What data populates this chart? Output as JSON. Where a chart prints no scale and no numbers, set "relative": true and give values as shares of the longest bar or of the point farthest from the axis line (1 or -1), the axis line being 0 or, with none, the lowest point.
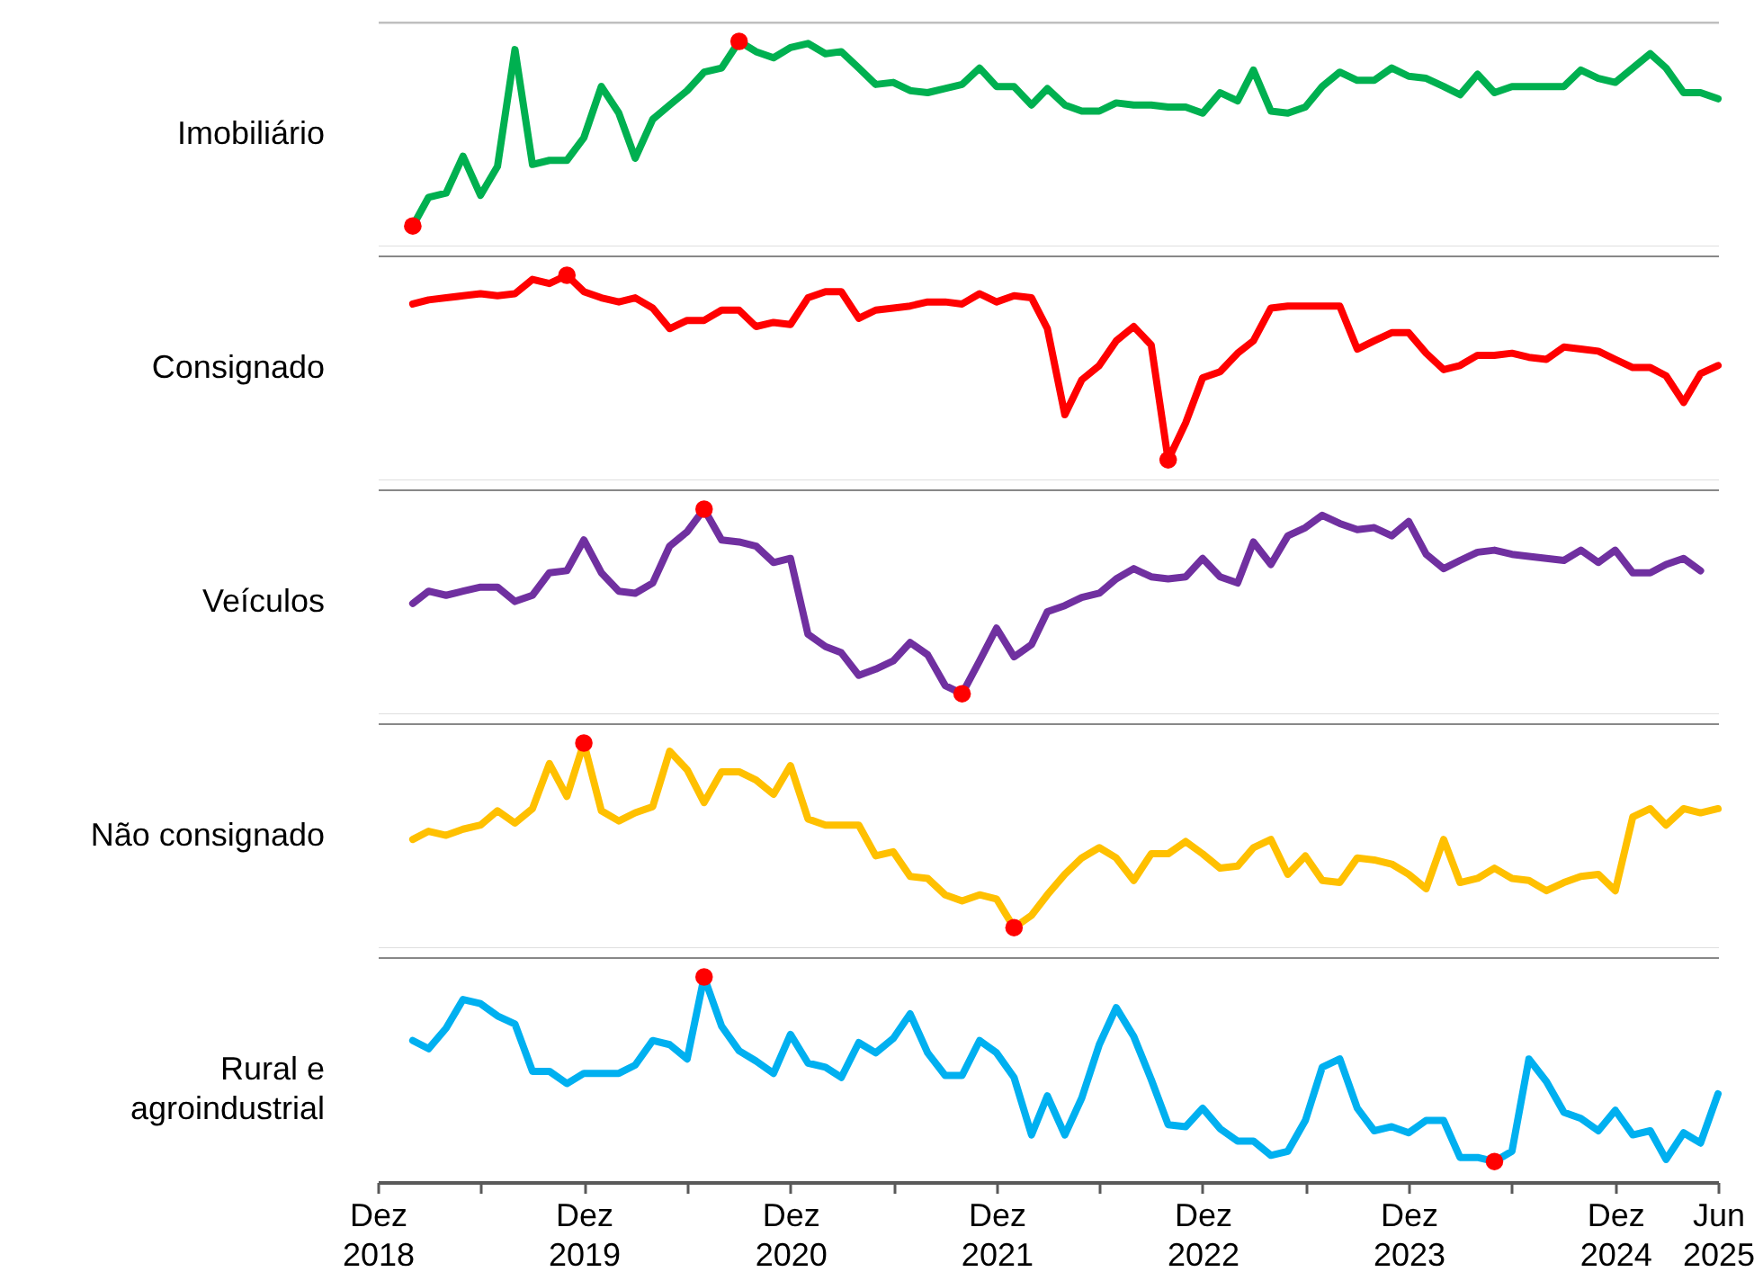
{
  "chart_data": [
    {
      "type": "line",
      "relative": true,
      "ylabel": "Imobiliário",
      "tick_labels": false,
      "xlim": [
        "2018-12",
        "2025-06"
      ],
      "x": [
        "2019-02",
        "2019-03",
        "2019-04",
        "2019-05",
        "2019-06",
        "2019-07",
        "2019-08",
        "2019-09",
        "2019-10",
        "2019-11",
        "2019-12",
        "2020-01",
        "2020-02",
        "2020-03",
        "2020-04",
        "2020-05",
        "2020-06",
        "2020-07",
        "2020-08",
        "2020-09",
        "2020-10",
        "2020-11",
        "2020-12",
        "2021-01",
        "2021-02",
        "2021-03",
        "2021-04",
        "2021-05",
        "2021-06",
        "2021-07",
        "2021-08",
        "2021-09",
        "2021-10",
        "2021-11",
        "2021-12",
        "2022-01",
        "2022-02",
        "2022-03",
        "2022-04",
        "2022-05",
        "2022-06",
        "2022-07",
        "2022-08",
        "2022-09",
        "2022-10",
        "2022-11",
        "2022-12",
        "2023-01",
        "2023-02",
        "2023-03",
        "2023-04",
        "2023-05",
        "2023-06",
        "2023-07",
        "2023-08",
        "2023-09",
        "2023-10",
        "2023-11",
        "2023-12",
        "2024-01",
        "2024-02",
        "2024-03",
        "2024-04",
        "2024-05",
        "2024-06",
        "2024-07",
        "2024-08",
        "2024-09",
        "2024-10",
        "2024-11",
        "2024-12",
        "2025-01",
        "2025-02",
        "2025-03",
        "2025-04",
        "2025-05",
        "2025-06"
      ],
      "series": [
        {
          "color": "#00b050",
          "values": [
            0.1,
            0.24,
            0.26,
            0.44,
            0.25,
            0.39,
            0.96,
            0.4,
            0.42,
            0.42,
            0.53,
            0.78,
            0.65,
            0.43,
            0.62,
            0.69,
            0.76,
            0.85,
            0.87,
            1,
            0.95,
            0.92,
            0.97,
            0.99,
            0.94,
            0.95,
            0.87,
            0.79,
            0.8,
            0.76,
            0.75,
            0.77,
            0.79,
            0.87,
            0.78,
            0.78,
            0.69,
            0.77,
            0.69,
            0.66,
            0.66,
            0.7,
            0.69,
            0.69,
            0.68,
            0.68,
            0.65,
            0.75,
            0.71,
            0.86,
            0.66,
            0.65,
            0.68,
            0.78,
            0.85,
            0.81,
            0.81,
            0.87,
            0.83,
            0.82,
            0.78,
            0.74,
            0.84,
            0.75,
            0.78,
            0.78,
            0.78,
            0.78,
            0.86,
            0.82,
            0.8,
            0.87,
            0.94,
            0.87,
            0.75,
            0.75,
            0.72
          ]
        },
        {
          "type": "scatter",
          "color": "#ff0000",
          "x": [
            "2019-02",
            "2020-09"
          ],
          "values": [
            0.1,
            1
          ]
        }
      ]
    },
    {
      "type": "line",
      "relative": true,
      "ylabel": "Consignado",
      "tick_labels": false,
      "xlim": [
        "2018-12",
        "2025-06"
      ],
      "x": [
        "2019-02",
        "2019-03",
        "2019-04",
        "2019-05",
        "2019-06",
        "2019-07",
        "2019-08",
        "2019-09",
        "2019-10",
        "2019-11",
        "2019-12",
        "2020-01",
        "2020-02",
        "2020-03",
        "2020-04",
        "2020-05",
        "2020-06",
        "2020-07",
        "2020-08",
        "2020-09",
        "2020-10",
        "2020-11",
        "2020-12",
        "2021-01",
        "2021-02",
        "2021-03",
        "2021-04",
        "2021-05",
        "2021-06",
        "2021-07",
        "2021-08",
        "2021-09",
        "2021-10",
        "2021-11",
        "2021-12",
        "2022-01",
        "2022-02",
        "2022-03",
        "2022-04",
        "2022-05",
        "2022-06",
        "2022-07",
        "2022-08",
        "2022-09",
        "2022-10",
        "2022-11",
        "2022-12",
        "2023-01",
        "2023-02",
        "2023-03",
        "2023-04",
        "2023-05",
        "2023-06",
        "2023-07",
        "2023-08",
        "2023-09",
        "2023-10",
        "2023-11",
        "2023-12",
        "2024-01",
        "2024-02",
        "2024-03",
        "2024-04",
        "2024-05",
        "2024-06",
        "2024-07",
        "2024-08",
        "2024-09",
        "2024-10",
        "2024-11",
        "2024-12",
        "2025-01",
        "2025-02",
        "2025-03",
        "2025-04",
        "2025-05",
        "2025-06"
      ],
      "series": [
        {
          "color": "#ff0000",
          "values": [
            0.86,
            0.88,
            0.89,
            0.9,
            0.91,
            0.9,
            0.91,
            0.98,
            0.96,
            1,
            0.92,
            0.89,
            0.87,
            0.89,
            0.84,
            0.74,
            0.78,
            0.78,
            0.83,
            0.83,
            0.75,
            0.77,
            0.76,
            0.89,
            0.92,
            0.92,
            0.79,
            0.83,
            0.84,
            0.85,
            0.87,
            0.87,
            0.86,
            0.91,
            0.87,
            0.9,
            0.89,
            0.74,
            0.32,
            0.49,
            0.56,
            0.68,
            0.75,
            0.66,
            0.1,
            0.28,
            0.5,
            0.53,
            0.62,
            0.68,
            0.84,
            0.85,
            0.85,
            0.85,
            0.85,
            0.64,
            0.68,
            0.72,
            0.72,
            0.62,
            0.54,
            0.56,
            0.61,
            0.61,
            0.62,
            0.6,
            0.59,
            0.65,
            0.64,
            0.63,
            0.59,
            0.55,
            0.55,
            0.51,
            0.38,
            0.52,
            0.56
          ]
        },
        {
          "type": "scatter",
          "color": "#ff0000",
          "x": [
            "2019-11",
            "2022-10"
          ],
          "values": [
            1,
            0.1
          ]
        }
      ]
    },
    {
      "type": "line",
      "relative": true,
      "ylabel": "Veículos",
      "tick_labels": false,
      "xlim": [
        "2018-12",
        "2025-06"
      ],
      "x": [
        "2019-02",
        "2019-03",
        "2019-04",
        "2019-05",
        "2019-06",
        "2019-07",
        "2019-08",
        "2019-09",
        "2019-10",
        "2019-11",
        "2019-12",
        "2020-01",
        "2020-02",
        "2020-03",
        "2020-04",
        "2020-05",
        "2020-06",
        "2020-07",
        "2020-08",
        "2020-09",
        "2020-10",
        "2020-11",
        "2020-12",
        "2021-01",
        "2021-02",
        "2021-03",
        "2021-04",
        "2021-05",
        "2021-06",
        "2021-07",
        "2021-08",
        "2021-09",
        "2021-10",
        "2021-11",
        "2021-12",
        "2022-01",
        "2022-02",
        "2022-03",
        "2022-04",
        "2022-05",
        "2022-06",
        "2022-07",
        "2022-08",
        "2022-09",
        "2022-10",
        "2022-11",
        "2022-12",
        "2023-01",
        "2023-02",
        "2023-03",
        "2023-04",
        "2023-05",
        "2023-06",
        "2023-07",
        "2023-08",
        "2023-09",
        "2023-10",
        "2023-11",
        "2023-12",
        "2024-01",
        "2024-02",
        "2024-03",
        "2024-04",
        "2024-05",
        "2024-06",
        "2024-07",
        "2024-08",
        "2024-09",
        "2024-10",
        "2024-11",
        "2024-12",
        "2025-01",
        "2025-02",
        "2025-03",
        "2025-04",
        "2025-05"
      ],
      "series": [
        {
          "color": "#7030a0",
          "values": [
            0.54,
            0.6,
            0.58,
            0.6,
            0.62,
            0.62,
            0.55,
            0.58,
            0.69,
            0.7,
            0.85,
            0.69,
            0.6,
            0.59,
            0.64,
            0.82,
            0.89,
            1,
            0.85,
            0.84,
            0.82,
            0.74,
            0.76,
            0.39,
            0.33,
            0.3,
            0.19,
            0.22,
            0.26,
            0.35,
            0.29,
            0.14,
            0.1,
            0.26,
            0.42,
            0.28,
            0.34,
            0.5,
            0.53,
            0.57,
            0.59,
            0.66,
            0.71,
            0.67,
            0.66,
            0.67,
            0.76,
            0.67,
            0.64,
            0.84,
            0.73,
            0.87,
            0.91,
            0.97,
            0.93,
            0.9,
            0.91,
            0.87,
            0.94,
            0.78,
            0.71,
            0.75,
            0.79,
            0.8,
            0.78,
            0.77,
            0.76,
            0.75,
            0.8,
            0.74,
            0.8,
            0.69,
            0.69,
            0.73,
            0.76,
            0.7
          ]
        },
        {
          "type": "scatter",
          "color": "#ff0000",
          "x": [
            "2020-07",
            "2021-10"
          ],
          "values": [
            1,
            0.1
          ]
        }
      ]
    },
    {
      "type": "line",
      "relative": true,
      "ylabel": "Não consignado",
      "tick_labels": false,
      "xlim": [
        "2018-12",
        "2025-06"
      ],
      "x": [
        "2019-02",
        "2019-03",
        "2019-04",
        "2019-05",
        "2019-06",
        "2019-07",
        "2019-08",
        "2019-09",
        "2019-10",
        "2019-11",
        "2019-12",
        "2020-01",
        "2020-02",
        "2020-03",
        "2020-04",
        "2020-05",
        "2020-06",
        "2020-07",
        "2020-08",
        "2020-09",
        "2020-10",
        "2020-11",
        "2020-12",
        "2021-01",
        "2021-02",
        "2021-03",
        "2021-04",
        "2021-05",
        "2021-06",
        "2021-07",
        "2021-08",
        "2021-09",
        "2021-10",
        "2021-11",
        "2021-12",
        "2022-01",
        "2022-02",
        "2022-03",
        "2022-04",
        "2022-05",
        "2022-06",
        "2022-07",
        "2022-08",
        "2022-09",
        "2022-10",
        "2022-11",
        "2022-12",
        "2023-01",
        "2023-02",
        "2023-03",
        "2023-04",
        "2023-05",
        "2023-06",
        "2023-07",
        "2023-08",
        "2023-09",
        "2023-10",
        "2023-11",
        "2023-12",
        "2024-01",
        "2024-02",
        "2024-03",
        "2024-04",
        "2024-05",
        "2024-06",
        "2024-07",
        "2024-08",
        "2024-09",
        "2024-10",
        "2024-11",
        "2024-12",
        "2025-01",
        "2025-02",
        "2025-03",
        "2025-04",
        "2025-05",
        "2025-06"
      ],
      "series": [
        {
          "color": "#ffc000",
          "values": [
            0.53,
            0.57,
            0.55,
            0.58,
            0.6,
            0.67,
            0.61,
            0.68,
            0.9,
            0.74,
            1,
            0.67,
            0.62,
            0.66,
            0.69,
            0.96,
            0.87,
            0.71,
            0.86,
            0.86,
            0.82,
            0.75,
            0.89,
            0.63,
            0.6,
            0.6,
            0.6,
            0.45,
            0.47,
            0.35,
            0.34,
            0.26,
            0.23,
            0.26,
            0.24,
            0.1,
            0.16,
            0.26,
            0.36,
            0.44,
            0.49,
            0.44,
            0.33,
            0.46,
            0.46,
            0.52,
            0.46,
            0.39,
            0.4,
            0.49,
            0.53,
            0.36,
            0.45,
            0.33,
            0.32,
            0.44,
            0.43,
            0.41,
            0.36,
            0.29,
            0.53,
            0.32,
            0.34,
            0.39,
            0.34,
            0.33,
            0.28,
            0.32,
            0.35,
            0.36,
            0.28,
            0.64,
            0.68,
            0.6,
            0.68,
            0.66,
            0.68
          ]
        },
        {
          "type": "scatter",
          "color": "#ff0000",
          "x": [
            "2019-12",
            "2022-01"
          ],
          "values": [
            1,
            0.1
          ]
        }
      ]
    },
    {
      "type": "line",
      "relative": true,
      "ylabel": "Rural e agroindustrial",
      "tick_labels": "x",
      "xlim": [
        "2018-12",
        "2025-06"
      ],
      "xticks": [
        {
          "value": "2018-12",
          "label": "Dez 2018"
        },
        {
          "value": "2019-06",
          "label": null
        },
        {
          "value": "2019-12",
          "label": "Dez 2019"
        },
        {
          "value": "2020-06",
          "label": null
        },
        {
          "value": "2020-12",
          "label": "Dez 2020"
        },
        {
          "value": "2021-06",
          "label": null
        },
        {
          "value": "2021-12",
          "label": "Dez 2021"
        },
        {
          "value": "2022-06",
          "label": null
        },
        {
          "value": "2022-12",
          "label": "Dez 2022"
        },
        {
          "value": "2023-06",
          "label": null
        },
        {
          "value": "2023-12",
          "label": "Dez 2023"
        },
        {
          "value": "2024-06",
          "label": null
        },
        {
          "value": "2024-12",
          "label": "Dez 2024"
        },
        {
          "value": "2025-06",
          "label": "Jun 2025"
        }
      ],
      "x": [
        "2019-02",
        "2019-03",
        "2019-04",
        "2019-05",
        "2019-06",
        "2019-07",
        "2019-08",
        "2019-09",
        "2019-10",
        "2019-11",
        "2019-12",
        "2020-01",
        "2020-02",
        "2020-03",
        "2020-04",
        "2020-05",
        "2020-06",
        "2020-07",
        "2020-08",
        "2020-09",
        "2020-10",
        "2020-11",
        "2020-12",
        "2021-01",
        "2021-02",
        "2021-03",
        "2021-04",
        "2021-05",
        "2021-06",
        "2021-07",
        "2021-08",
        "2021-09",
        "2021-10",
        "2021-11",
        "2021-12",
        "2022-01",
        "2022-02",
        "2022-03",
        "2022-04",
        "2022-05",
        "2022-06",
        "2022-07",
        "2022-08",
        "2022-09",
        "2022-10",
        "2022-11",
        "2022-12",
        "2023-01",
        "2023-02",
        "2023-03",
        "2023-04",
        "2023-05",
        "2023-06",
        "2023-07",
        "2023-08",
        "2023-09",
        "2023-10",
        "2023-11",
        "2023-12",
        "2024-01",
        "2024-02",
        "2024-03",
        "2024-04",
        "2024-05",
        "2024-06",
        "2024-07",
        "2024-08",
        "2024-09",
        "2024-10",
        "2024-11",
        "2024-12",
        "2025-01",
        "2025-02",
        "2025-03",
        "2025-04",
        "2025-05",
        "2025-06"
      ],
      "series": [
        {
          "color": "#00b0f0",
          "values": [
            0.69,
            0.65,
            0.75,
            0.89,
            0.87,
            0.81,
            0.77,
            0.54,
            0.54,
            0.48,
            0.53,
            0.53,
            0.53,
            0.57,
            0.69,
            0.67,
            0.6,
            1,
            0.76,
            0.64,
            0.59,
            0.53,
            0.72,
            0.58,
            0.56,
            0.51,
            0.68,
            0.63,
            0.7,
            0.82,
            0.63,
            0.52,
            0.52,
            0.69,
            0.63,
            0.51,
            0.23,
            0.42,
            0.23,
            0.41,
            0.67,
            0.85,
            0.71,
            0.5,
            0.28,
            0.27,
            0.36,
            0.26,
            0.2,
            0.2,
            0.13,
            0.15,
            0.3,
            0.56,
            0.6,
            0.36,
            0.25,
            0.27,
            0.24,
            0.3,
            0.3,
            0.12,
            0.12,
            0.1,
            0.15,
            0.6,
            0.49,
            0.34,
            0.31,
            0.25,
            0.35,
            0.23,
            0.25,
            0.11,
            0.24,
            0.19,
            0.43
          ]
        },
        {
          "type": "scatter",
          "color": "#ff0000",
          "x": [
            "2020-07",
            "2024-05"
          ],
          "values": [
            1,
            0.1
          ]
        }
      ]
    }
  ]
}
